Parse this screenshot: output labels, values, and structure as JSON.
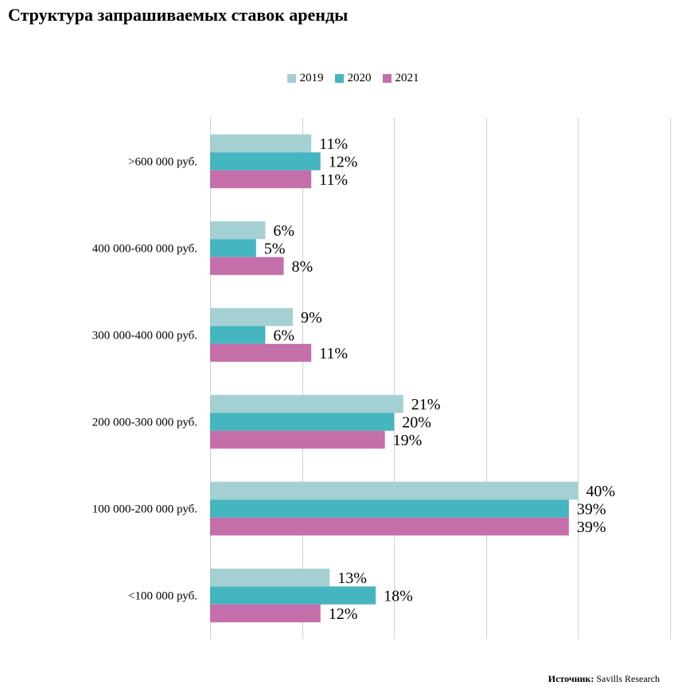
{
  "page": {
    "title": "Структура запрашиваемых ставок аренды",
    "source_label": "Источник:",
    "source_value": "Savills Research"
  },
  "chart_data": {
    "type": "bar",
    "orientation": "horizontal",
    "title": "Структура запрашиваемых ставок аренды",
    "xlabel": "",
    "ylabel": "",
    "xlim": [
      0,
      50
    ],
    "grid": true,
    "legend_position": "top-center",
    "categories": [
      ">600 000 руб.",
      "400 000-600 000 руб.",
      "300 000-400 000 руб.",
      "200 000-300 000 руб.",
      "100 000-200 000 руб.",
      "<100 000 руб."
    ],
    "series": [
      {
        "name": "2019",
        "color": "#a5d0d3",
        "values": [
          11,
          6,
          9,
          21,
          40,
          13
        ],
        "labels": [
          "11%",
          "6%",
          "9%",
          "21%",
          "40%",
          "13%"
        ]
      },
      {
        "name": "2020",
        "color": "#45b5c0",
        "values": [
          12,
          5,
          6,
          20,
          39,
          18
        ],
        "labels": [
          "12%",
          "5%",
          "6%",
          "20%",
          "39%",
          "18%"
        ]
      },
      {
        "name": "2021",
        "color": "#c46fa9",
        "values": [
          11,
          8,
          11,
          19,
          39,
          12
        ],
        "labels": [
          "11%",
          "8%",
          "11%",
          "19%",
          "39%",
          "12%"
        ]
      }
    ]
  }
}
